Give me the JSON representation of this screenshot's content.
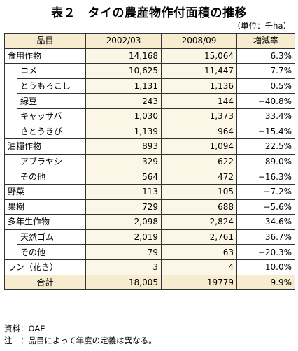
{
  "title": "表２　タイの農産物作付面積の推移",
  "unit": "（単位：千ha）",
  "headers": [
    "品目",
    "2002/03",
    "2008/09",
    "増減率"
  ],
  "rows": [
    {
      "label": "食用作物",
      "v1": "14,168",
      "v2": "15,064",
      "rate": "6.3%",
      "level": 0
    },
    {
      "label": "コメ",
      "v1": "10,625",
      "v2": "11,447",
      "rate": "7.7%",
      "level": 1
    },
    {
      "label": "とうもろこし",
      "v1": "1,131",
      "v2": "1,136",
      "rate": "0.5%",
      "level": 1
    },
    {
      "label": "緑豆",
      "v1": "243",
      "v2": "144",
      "rate": "−40.8%",
      "level": 1
    },
    {
      "label": "キャッサバ",
      "v1": "1,030",
      "v2": "1,373",
      "rate": "33.4%",
      "level": 1
    },
    {
      "label": "さとうきび",
      "v1": "1,139",
      "v2": "964",
      "rate": "−15.4%",
      "level": 1
    },
    {
      "label": "油糧作物",
      "v1": "893",
      "v2": "1,094",
      "rate": "22.5%",
      "level": 0
    },
    {
      "label": "アブラヤシ",
      "v1": "329",
      "v2": "622",
      "rate": "89.0%",
      "level": 1
    },
    {
      "label": "その他",
      "v1": "564",
      "v2": "472",
      "rate": "−16.3%",
      "level": 1
    },
    {
      "label": "野菜",
      "v1": "113",
      "v2": "105",
      "rate": "−7.2%",
      "level": 0
    },
    {
      "label": "果樹",
      "v1": "729",
      "v2": "688",
      "rate": "−5.6%",
      "level": 0
    },
    {
      "label": "多年生作物",
      "v1": "2,098",
      "v2": "2,824",
      "rate": "34.6%",
      "level": 0
    },
    {
      "label": "天然ゴム",
      "v1": "2,019",
      "v2": "2,761",
      "rate": "36.7%",
      "level": 1
    },
    {
      "label": "その他",
      "v1": "79",
      "v2": "63",
      "rate": "−20.3%",
      "level": 1
    },
    {
      "label": "ラン（花き）",
      "v1": "3",
      "v2": "4",
      "rate": "10.0%",
      "level": 0
    }
  ],
  "total": {
    "label": "合計",
    "v1": "18,005",
    "v2": "19779",
    "rate": "9.9%"
  },
  "notes": {
    "source": "資料：OAE",
    "note": "注　：品目によって年度の定義は異なる。"
  }
}
